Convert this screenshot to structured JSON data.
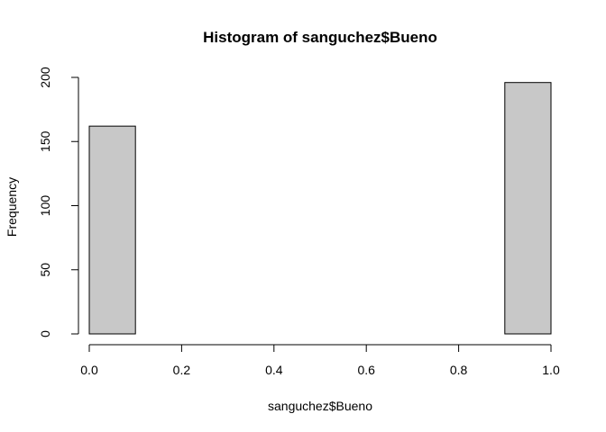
{
  "chart_data": {
    "type": "bar",
    "subtype": "histogram",
    "title": "Histogram of sanguchez$Bueno",
    "xlabel": "sanguchez$Bueno",
    "ylabel": "Frequency",
    "bins": [
      {
        "start": 0.0,
        "end": 0.1,
        "count": 162
      },
      {
        "start": 0.1,
        "end": 0.2,
        "count": 0
      },
      {
        "start": 0.2,
        "end": 0.3,
        "count": 0
      },
      {
        "start": 0.3,
        "end": 0.4,
        "count": 0
      },
      {
        "start": 0.4,
        "end": 0.5,
        "count": 0
      },
      {
        "start": 0.5,
        "end": 0.6,
        "count": 0
      },
      {
        "start": 0.6,
        "end": 0.7,
        "count": 0
      },
      {
        "start": 0.7,
        "end": 0.8,
        "count": 0
      },
      {
        "start": 0.8,
        "end": 0.9,
        "count": 0
      },
      {
        "start": 0.9,
        "end": 1.0,
        "count": 196
      }
    ],
    "xlim": [
      0,
      1
    ],
    "ylim": [
      0,
      200
    ],
    "xticks": [
      {
        "value": 0.0,
        "label": "0.0"
      },
      {
        "value": 0.2,
        "label": "0.2"
      },
      {
        "value": 0.4,
        "label": "0.4"
      },
      {
        "value": 0.6,
        "label": "0.6"
      },
      {
        "value": 0.8,
        "label": "0.8"
      },
      {
        "value": 1.0,
        "label": "1.0"
      }
    ],
    "yticks": [
      {
        "value": 0,
        "label": "0"
      },
      {
        "value": 50,
        "label": "50"
      },
      {
        "value": 100,
        "label": "100"
      },
      {
        "value": 150,
        "label": "150"
      },
      {
        "value": 200,
        "label": "200"
      }
    ],
    "bar_color": "#c8c8c8",
    "bar_edge_color": "#000000",
    "grid": false,
    "legend": "none"
  }
}
